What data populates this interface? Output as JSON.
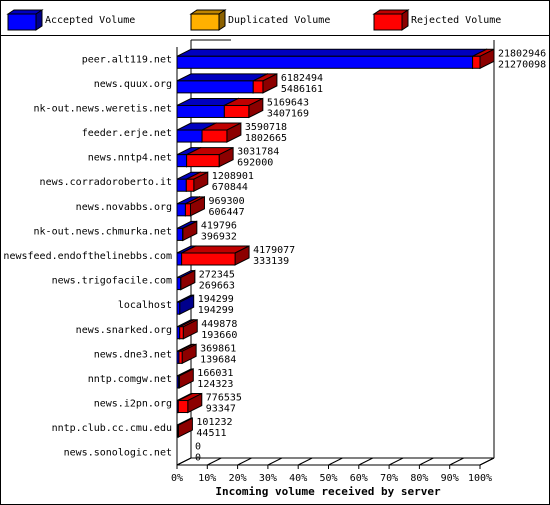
{
  "chart_data": {
    "type": "bar3d",
    "orientation": "horizontal",
    "stacked": true,
    "xlabel": "Incoming volume received by server",
    "categories": [
      "peer.alt119.net",
      "news.quux.org",
      "nk-out.news.weretis.net",
      "feeder.erje.net",
      "news.nntp4.net",
      "news.corradoroberto.it",
      "news.novabbs.org",
      "nk-out.news.chmurka.net",
      "newsfeed.endofthelinebbs.com",
      "news.trigofacile.com",
      "localhost",
      "news.snarked.org",
      "news.dne3.net",
      "nntp.comgw.net",
      "news.i2pn.org",
      "nntp.club.cc.cmu.edu",
      "news.sonologic.net"
    ],
    "series": [
      {
        "name": "Accepted Volume",
        "color": "#0000ff",
        "values": [
          21270098,
          5486161,
          3407169,
          1802665,
          692000,
          670844,
          606447,
          396932,
          333139,
          269663,
          194299,
          193660,
          139684,
          124323,
          93347,
          44511,
          0
        ]
      },
      {
        "name": "Duplicated Volume",
        "color": "#ffb000",
        "values": [
          0,
          0,
          0,
          0,
          0,
          0,
          0,
          0,
          0,
          0,
          0,
          0,
          0,
          0,
          0,
          0,
          0
        ]
      },
      {
        "name": "Rejected Volume",
        "color": "#ff0000",
        "values": [
          532848,
          696333,
          1762474,
          1788053,
          2339784,
          538057,
          362853,
          22864,
          3845938,
          2682,
          0,
          256218,
          230177,
          41708,
          683188,
          56721,
          0
        ]
      }
    ],
    "totals": [
      21802946,
      6182494,
      5169643,
      3590718,
      3031784,
      1208901,
      969300,
      419796,
      4179077,
      272345,
      194299,
      449878,
      369861,
      166031,
      776535,
      101232,
      0
    ],
    "xlim": [
      0,
      21802946
    ],
    "xticks": [
      {
        "value": 0,
        "label": "0%"
      },
      {
        "value": 2180294.6,
        "label": "10%"
      },
      {
        "value": 4360589.2,
        "label": "20%"
      },
      {
        "value": 6540883.8,
        "label": "30%"
      },
      {
        "value": 8721178.4,
        "label": "40%"
      },
      {
        "value": 10901473,
        "label": "50%"
      },
      {
        "value": 13081767.6,
        "label": "60%"
      },
      {
        "value": 15262062.2,
        "label": "70%"
      },
      {
        "value": 17442356.8,
        "label": "80%"
      },
      {
        "value": 19622651.4,
        "label": "90%"
      },
      {
        "value": 21802946,
        "label": "100%"
      }
    ]
  }
}
